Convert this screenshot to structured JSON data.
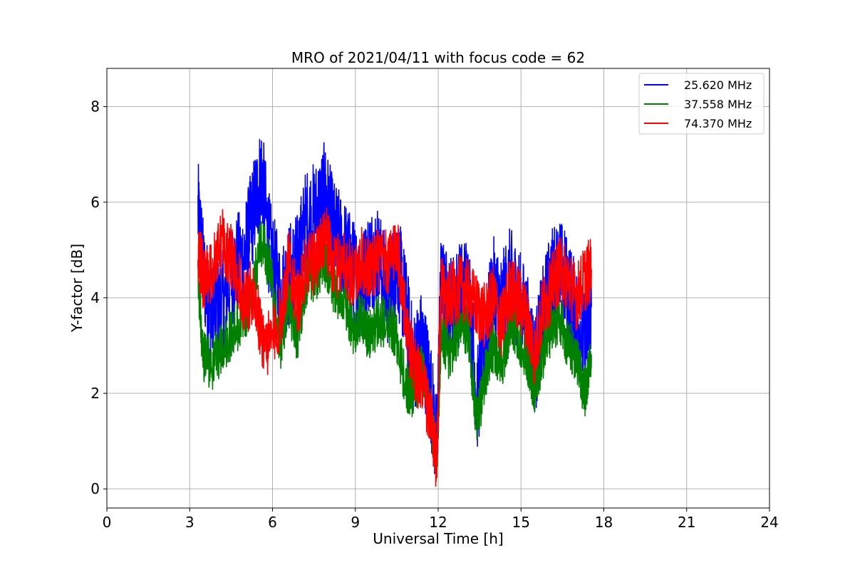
{
  "chart_data": {
    "type": "line",
    "title": "MRO of 2021/04/11 with focus code = 62",
    "xlabel": "Universal Time [h]",
    "ylabel": "Y-factor [dB]",
    "xlim": [
      0,
      24
    ],
    "ylim": [
      -0.4,
      8.8
    ],
    "xticks": [
      0,
      3,
      6,
      9,
      12,
      15,
      18,
      21,
      24
    ],
    "xtick_labels": [
      "0",
      "3",
      "6",
      "9",
      "12",
      "15",
      "18",
      "21",
      "24"
    ],
    "yticks": [
      0,
      2,
      4,
      6,
      8
    ],
    "ytick_labels": [
      "0",
      "2",
      "4",
      "6",
      "8"
    ],
    "grid": true,
    "legend_position": "top-right",
    "series": [
      {
        "name": "25.620 MHz",
        "color": "#0000ff",
        "x": [
          3.3,
          3.5,
          3.8,
          4.2,
          4.6,
          5.0,
          5.3,
          5.6,
          5.9,
          6.3,
          6.6,
          6.9,
          7.2,
          7.6,
          7.9,
          8.2,
          8.6,
          8.9,
          9.2,
          9.5,
          9.8,
          10.2,
          10.5,
          10.8,
          11.1,
          11.4,
          11.7,
          11.95,
          12.1,
          12.4,
          12.8,
          13.1,
          13.4,
          13.7,
          14.0,
          14.3,
          14.6,
          14.9,
          15.2,
          15.5,
          15.8,
          16.1,
          16.4,
          16.7,
          17.0,
          17.3,
          17.55
        ],
        "y": [
          5.8,
          4.5,
          3.6,
          3.9,
          4.6,
          4.9,
          5.8,
          6.6,
          5.0,
          4.0,
          4.5,
          4.7,
          5.6,
          5.8,
          6.2,
          5.4,
          5.0,
          4.6,
          4.2,
          4.8,
          4.9,
          4.0,
          4.8,
          3.9,
          2.6,
          3.1,
          2.2,
          0.8,
          4.2,
          3.8,
          4.1,
          4.3,
          1.8,
          3.0,
          4.2,
          3.8,
          4.4,
          4.0,
          3.5,
          2.6,
          3.6,
          4.4,
          4.6,
          4.2,
          3.6,
          3.0,
          3.8
        ]
      },
      {
        "name": "37.558 MHz",
        "color": "#008000",
        "x": [
          3.3,
          3.5,
          3.8,
          4.2,
          4.6,
          5.0,
          5.3,
          5.6,
          5.9,
          6.3,
          6.6,
          6.9,
          7.2,
          7.6,
          7.9,
          8.2,
          8.6,
          8.9,
          9.2,
          9.5,
          9.8,
          10.2,
          10.5,
          10.8,
          11.1,
          11.4,
          11.7,
          11.95,
          12.1,
          12.4,
          12.8,
          13.1,
          13.4,
          13.7,
          14.0,
          14.3,
          14.6,
          14.9,
          15.2,
          15.5,
          15.8,
          16.1,
          16.4,
          16.7,
          17.0,
          17.3,
          17.55
        ],
        "y": [
          4.3,
          2.8,
          2.6,
          3.0,
          3.3,
          3.6,
          4.2,
          5.2,
          4.6,
          3.0,
          3.8,
          3.2,
          4.3,
          4.5,
          4.7,
          4.2,
          3.9,
          3.3,
          3.6,
          3.2,
          3.5,
          3.5,
          3.2,
          2.2,
          2.0,
          2.5,
          1.6,
          0.6,
          3.2,
          2.8,
          3.4,
          3.3,
          1.3,
          2.4,
          3.0,
          2.6,
          3.4,
          3.2,
          2.8,
          2.1,
          2.8,
          3.4,
          3.6,
          3.0,
          2.8,
          2.0,
          2.8
        ]
      },
      {
        "name": "74.370 MHz",
        "color": "#ff0000",
        "x": [
          3.3,
          3.5,
          3.8,
          4.2,
          4.6,
          5.0,
          5.3,
          5.6,
          5.9,
          6.3,
          6.6,
          6.9,
          7.2,
          7.6,
          7.9,
          8.2,
          8.6,
          8.9,
          9.2,
          9.5,
          9.8,
          10.2,
          10.5,
          10.8,
          11.1,
          11.4,
          11.7,
          11.95,
          12.1,
          12.4,
          12.8,
          13.1,
          13.4,
          13.7,
          14.0,
          14.3,
          14.6,
          14.9,
          15.2,
          15.5,
          15.8,
          16.1,
          16.4,
          16.7,
          17.0,
          17.3,
          17.55
        ],
        "y": [
          5.0,
          4.4,
          4.5,
          5.2,
          4.7,
          3.8,
          4.2,
          3.2,
          3.0,
          3.6,
          4.8,
          3.8,
          4.6,
          4.8,
          5.4,
          4.6,
          4.8,
          4.4,
          4.8,
          4.6,
          4.8,
          4.7,
          5.2,
          3.6,
          2.6,
          2.2,
          1.6,
          0.5,
          4.2,
          4.0,
          4.2,
          4.1,
          3.8,
          3.6,
          4.0,
          3.4,
          4.2,
          4.0,
          3.6,
          2.8,
          3.8,
          4.2,
          4.6,
          4.4,
          4.0,
          4.4,
          4.6
        ]
      }
    ]
  }
}
